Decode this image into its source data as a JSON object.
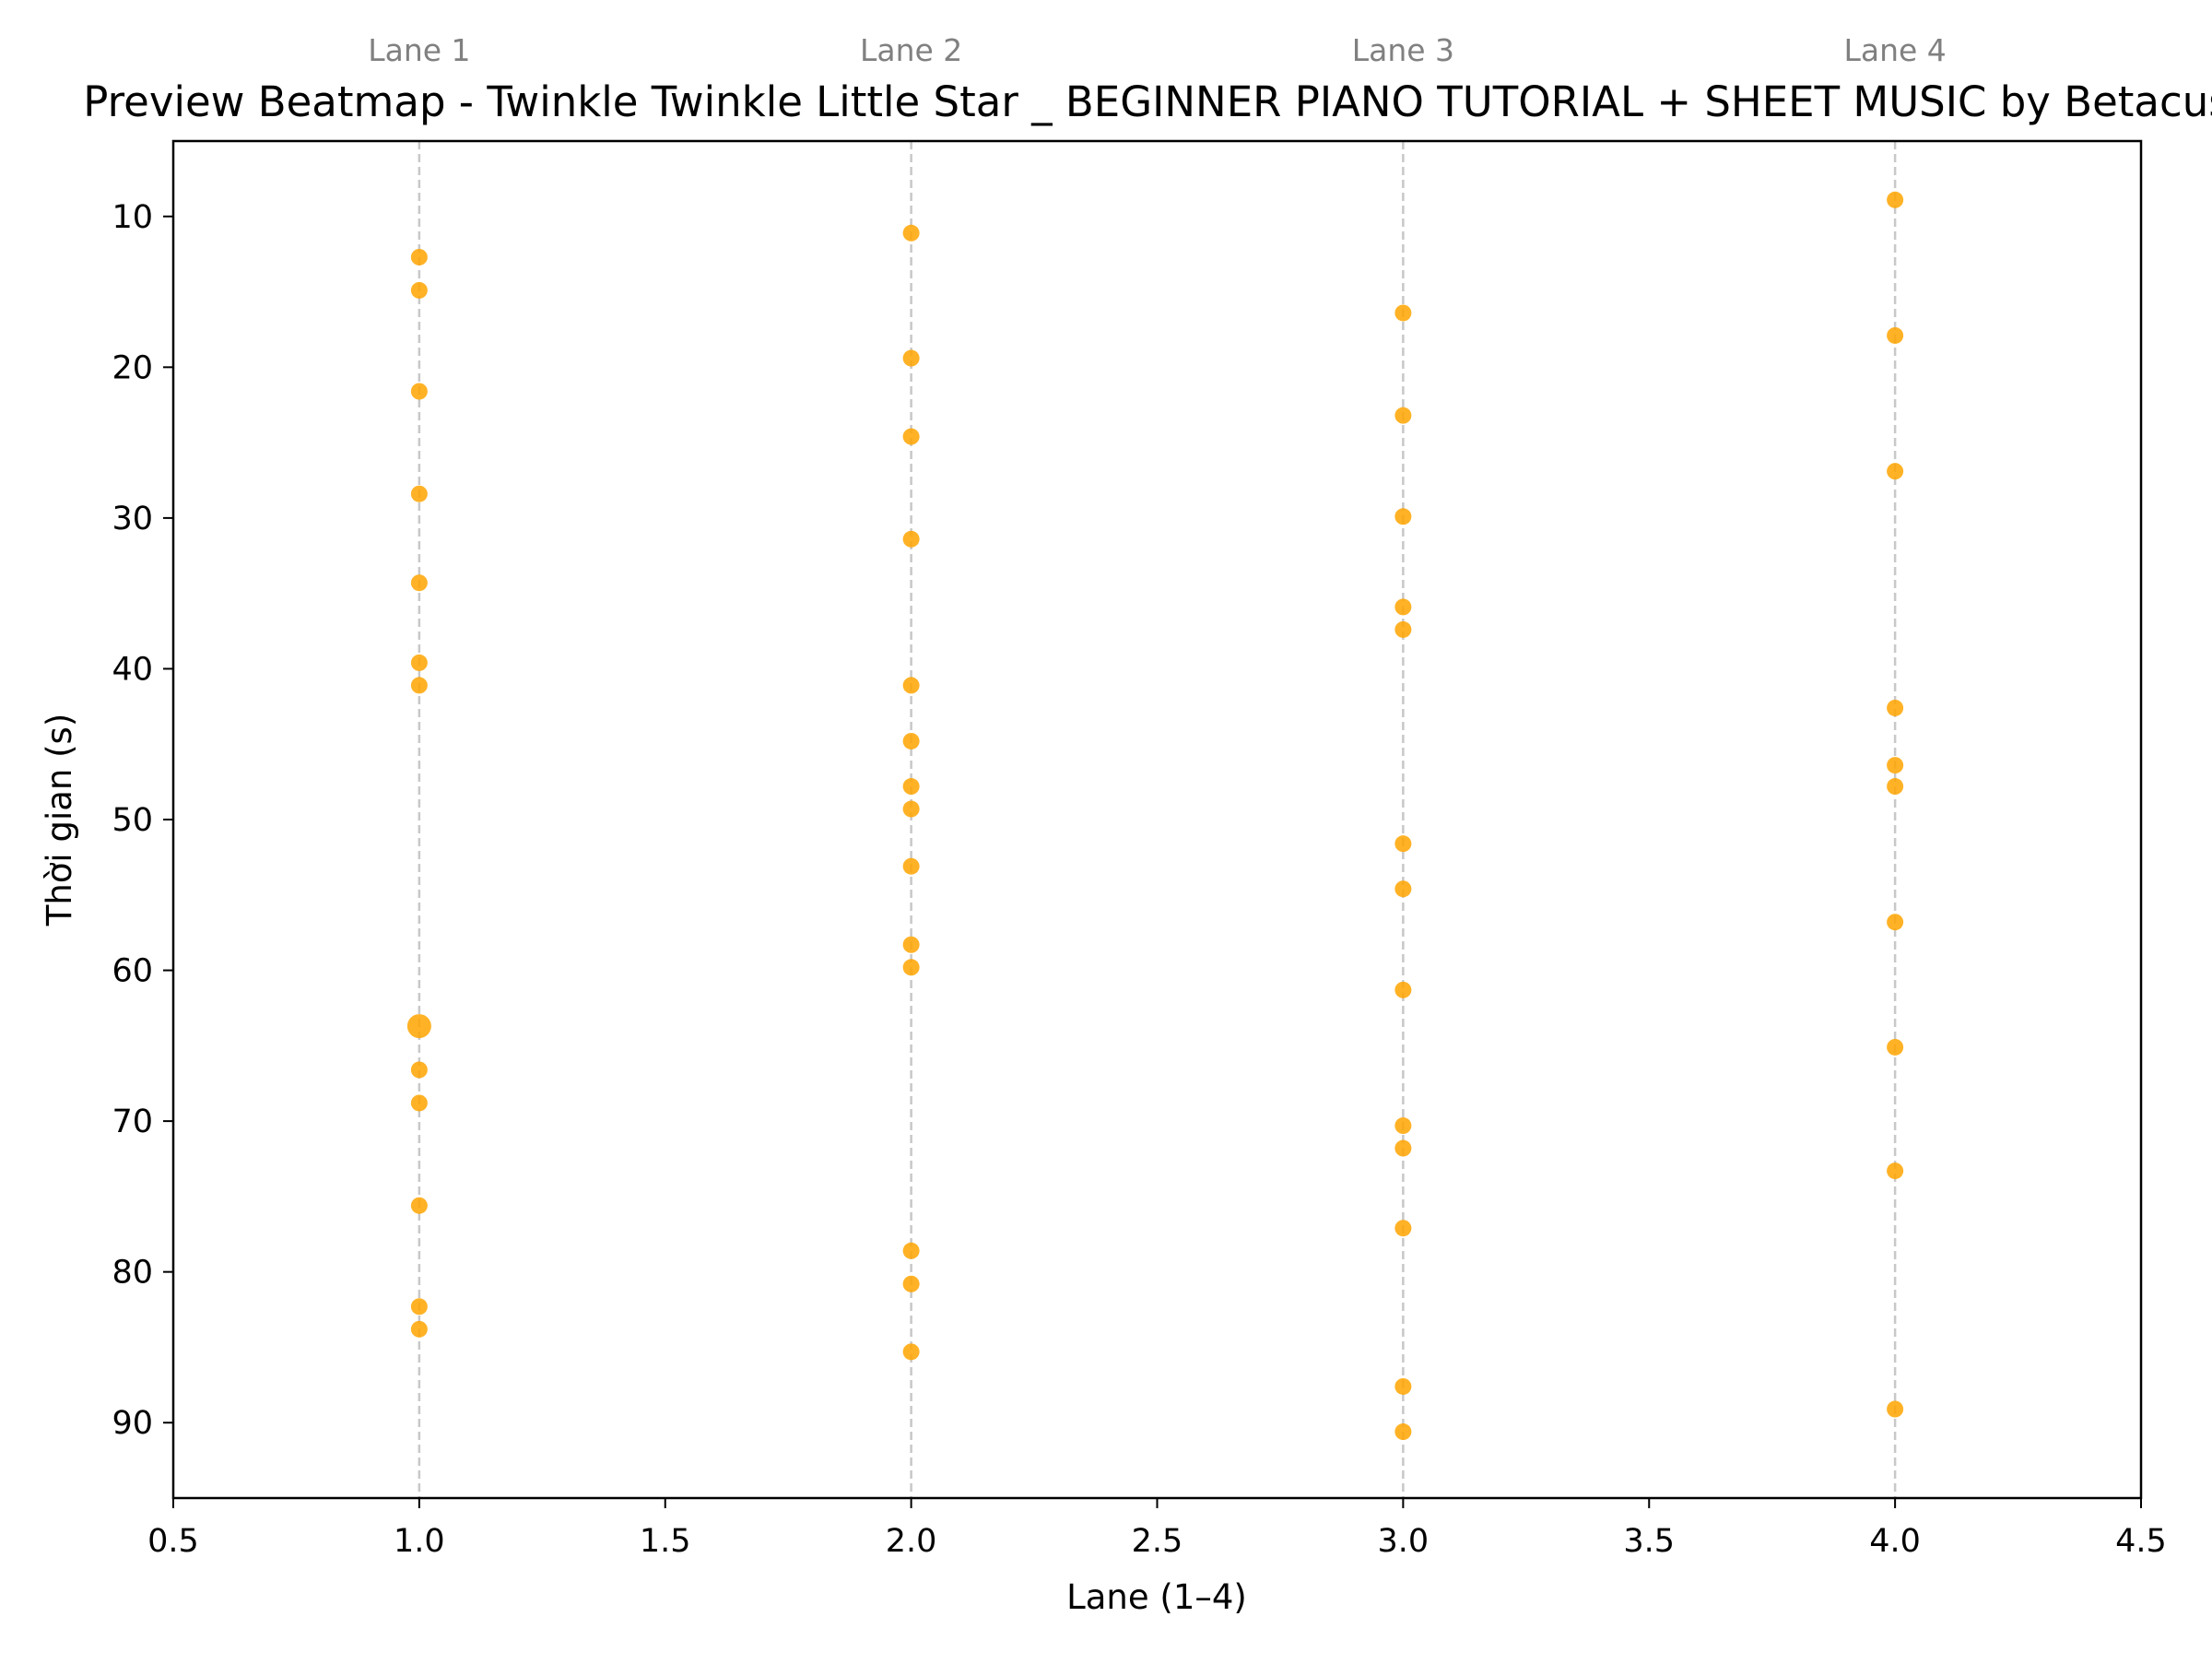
{
  "colors": {
    "point": "#FFA500",
    "lane_line": "#C8C8C8",
    "axis": "#000000",
    "lane_label": "#808080"
  },
  "chart_data": {
    "type": "scatter",
    "title": "Preview Beatmap - Twinkle Twinkle Little Star _ BEGINNER PIANO TUTORIAL + SHEET MUSIC by Betacus",
    "xlabel": "Lane (1–4)",
    "ylabel": "Thời gian (s)",
    "xlim": [
      0.5,
      4.5
    ],
    "ylim": [
      95,
      5
    ],
    "y_inverted": true,
    "grid": false,
    "legend": "none",
    "x_ticks": [
      0.5,
      1.0,
      1.5,
      2.0,
      2.5,
      3.0,
      3.5,
      4.0,
      4.5
    ],
    "x_tick_labels": [
      "0.5",
      "1.0",
      "1.5",
      "2.0",
      "2.5",
      "3.0",
      "3.5",
      "4.0",
      "4.5"
    ],
    "y_ticks": [
      10,
      20,
      30,
      40,
      50,
      60,
      70,
      80,
      90
    ],
    "y_tick_labels": [
      "10",
      "20",
      "30",
      "40",
      "50",
      "60",
      "70",
      "80",
      "90"
    ],
    "lanes": [
      {
        "x": 1,
        "label": "Lane 1"
      },
      {
        "x": 2,
        "label": "Lane 2"
      },
      {
        "x": 3,
        "label": "Lane 3"
      },
      {
        "x": 4,
        "label": "Lane 4"
      }
    ],
    "points": [
      {
        "x": 1,
        "y": 12.7
      },
      {
        "x": 1,
        "y": 14.9
      },
      {
        "x": 1,
        "y": 21.6
      },
      {
        "x": 1,
        "y": 28.4
      },
      {
        "x": 1,
        "y": 34.3
      },
      {
        "x": 1,
        "y": 39.6
      },
      {
        "x": 1,
        "y": 41.1
      },
      {
        "x": 1,
        "y": 63.7,
        "emphasis": true
      },
      {
        "x": 1,
        "y": 66.6
      },
      {
        "x": 1,
        "y": 68.8
      },
      {
        "x": 1,
        "y": 75.6
      },
      {
        "x": 1,
        "y": 82.3
      },
      {
        "x": 1,
        "y": 83.8
      },
      {
        "x": 2,
        "y": 11.1
      },
      {
        "x": 2,
        "y": 19.4
      },
      {
        "x": 2,
        "y": 24.6
      },
      {
        "x": 2,
        "y": 31.4
      },
      {
        "x": 2,
        "y": 41.1
      },
      {
        "x": 2,
        "y": 44.8
      },
      {
        "x": 2,
        "y": 47.8
      },
      {
        "x": 2,
        "y": 49.3
      },
      {
        "x": 2,
        "y": 53.1
      },
      {
        "x": 2,
        "y": 58.3
      },
      {
        "x": 2,
        "y": 59.8
      },
      {
        "x": 2,
        "y": 78.6
      },
      {
        "x": 2,
        "y": 80.8
      },
      {
        "x": 2,
        "y": 85.3
      },
      {
        "x": 3,
        "y": 16.4
      },
      {
        "x": 3,
        "y": 23.2
      },
      {
        "x": 3,
        "y": 29.9
      },
      {
        "x": 3,
        "y": 35.9
      },
      {
        "x": 3,
        "y": 37.4
      },
      {
        "x": 3,
        "y": 51.6
      },
      {
        "x": 3,
        "y": 54.6
      },
      {
        "x": 3,
        "y": 61.3
      },
      {
        "x": 3,
        "y": 70.3
      },
      {
        "x": 3,
        "y": 71.8
      },
      {
        "x": 3,
        "y": 77.1
      },
      {
        "x": 3,
        "y": 87.6
      },
      {
        "x": 3,
        "y": 90.6
      },
      {
        "x": 4,
        "y": 8.9
      },
      {
        "x": 4,
        "y": 17.9
      },
      {
        "x": 4,
        "y": 26.9
      },
      {
        "x": 4,
        "y": 42.6
      },
      {
        "x": 4,
        "y": 46.4
      },
      {
        "x": 4,
        "y": 47.8
      },
      {
        "x": 4,
        "y": 56.8
      },
      {
        "x": 4,
        "y": 65.1
      },
      {
        "x": 4,
        "y": 73.3
      },
      {
        "x": 4,
        "y": 89.1
      }
    ]
  }
}
